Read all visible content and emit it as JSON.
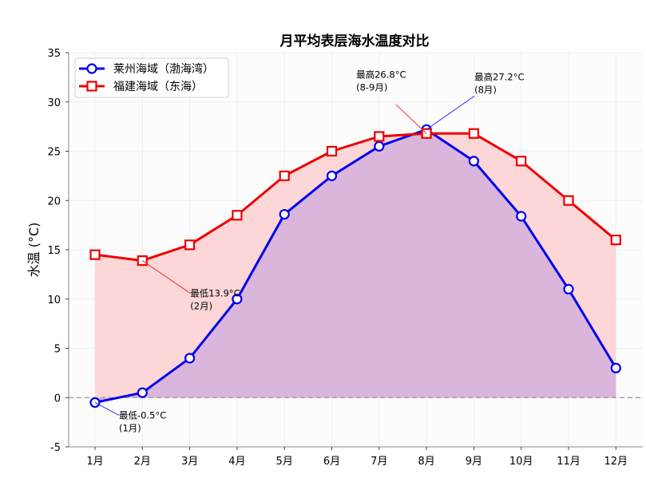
{
  "chart_data": {
    "type": "line",
    "title": "月平均表层海水温度对比",
    "xlabel": "",
    "ylabel": "水温 (°C)",
    "categories": [
      "1月",
      "2月",
      "3月",
      "4月",
      "5月",
      "6月",
      "7月",
      "8月",
      "9月",
      "10月",
      "11月",
      "12月"
    ],
    "ylim": [
      -5,
      35
    ],
    "yticks": [
      -5,
      0,
      5,
      10,
      15,
      20,
      25,
      30,
      35
    ],
    "grid": true,
    "legend_position": "top-left",
    "reference_line": 0,
    "series": [
      {
        "name": "莱州海域（渤海湾）",
        "color": "#0000ee",
        "fill": "#d8b4dc",
        "marker": "circle",
        "values": [
          -0.5,
          0.5,
          4.0,
          10.0,
          18.6,
          22.5,
          25.5,
          27.2,
          24.0,
          18.4,
          11.0,
          3.0
        ]
      },
      {
        "name": "福建海域（东海）",
        "color": "#ee0000",
        "fill": "#fdd6d8",
        "marker": "square",
        "values": [
          14.5,
          13.9,
          15.5,
          18.5,
          22.5,
          25.0,
          26.5,
          26.8,
          26.8,
          24.0,
          20.0,
          16.0
        ]
      }
    ],
    "annotations": [
      {
        "series": 0,
        "index": 0,
        "lines": [
          "最低-0.5°C",
          "(1月)"
        ],
        "color": "#3333ee"
      },
      {
        "series": 1,
        "index": 1,
        "lines": [
          "最低13.9°C",
          "(2月)"
        ],
        "color": "#ee3333"
      },
      {
        "series": 1,
        "index": 7,
        "lines": [
          "最高26.8°C",
          "(8-9月)"
        ],
        "color": "#ee3333"
      },
      {
        "series": 0,
        "index": 7,
        "lines": [
          "最高27.2°C",
          "(8月)"
        ],
        "color": "#3333ee"
      }
    ]
  }
}
